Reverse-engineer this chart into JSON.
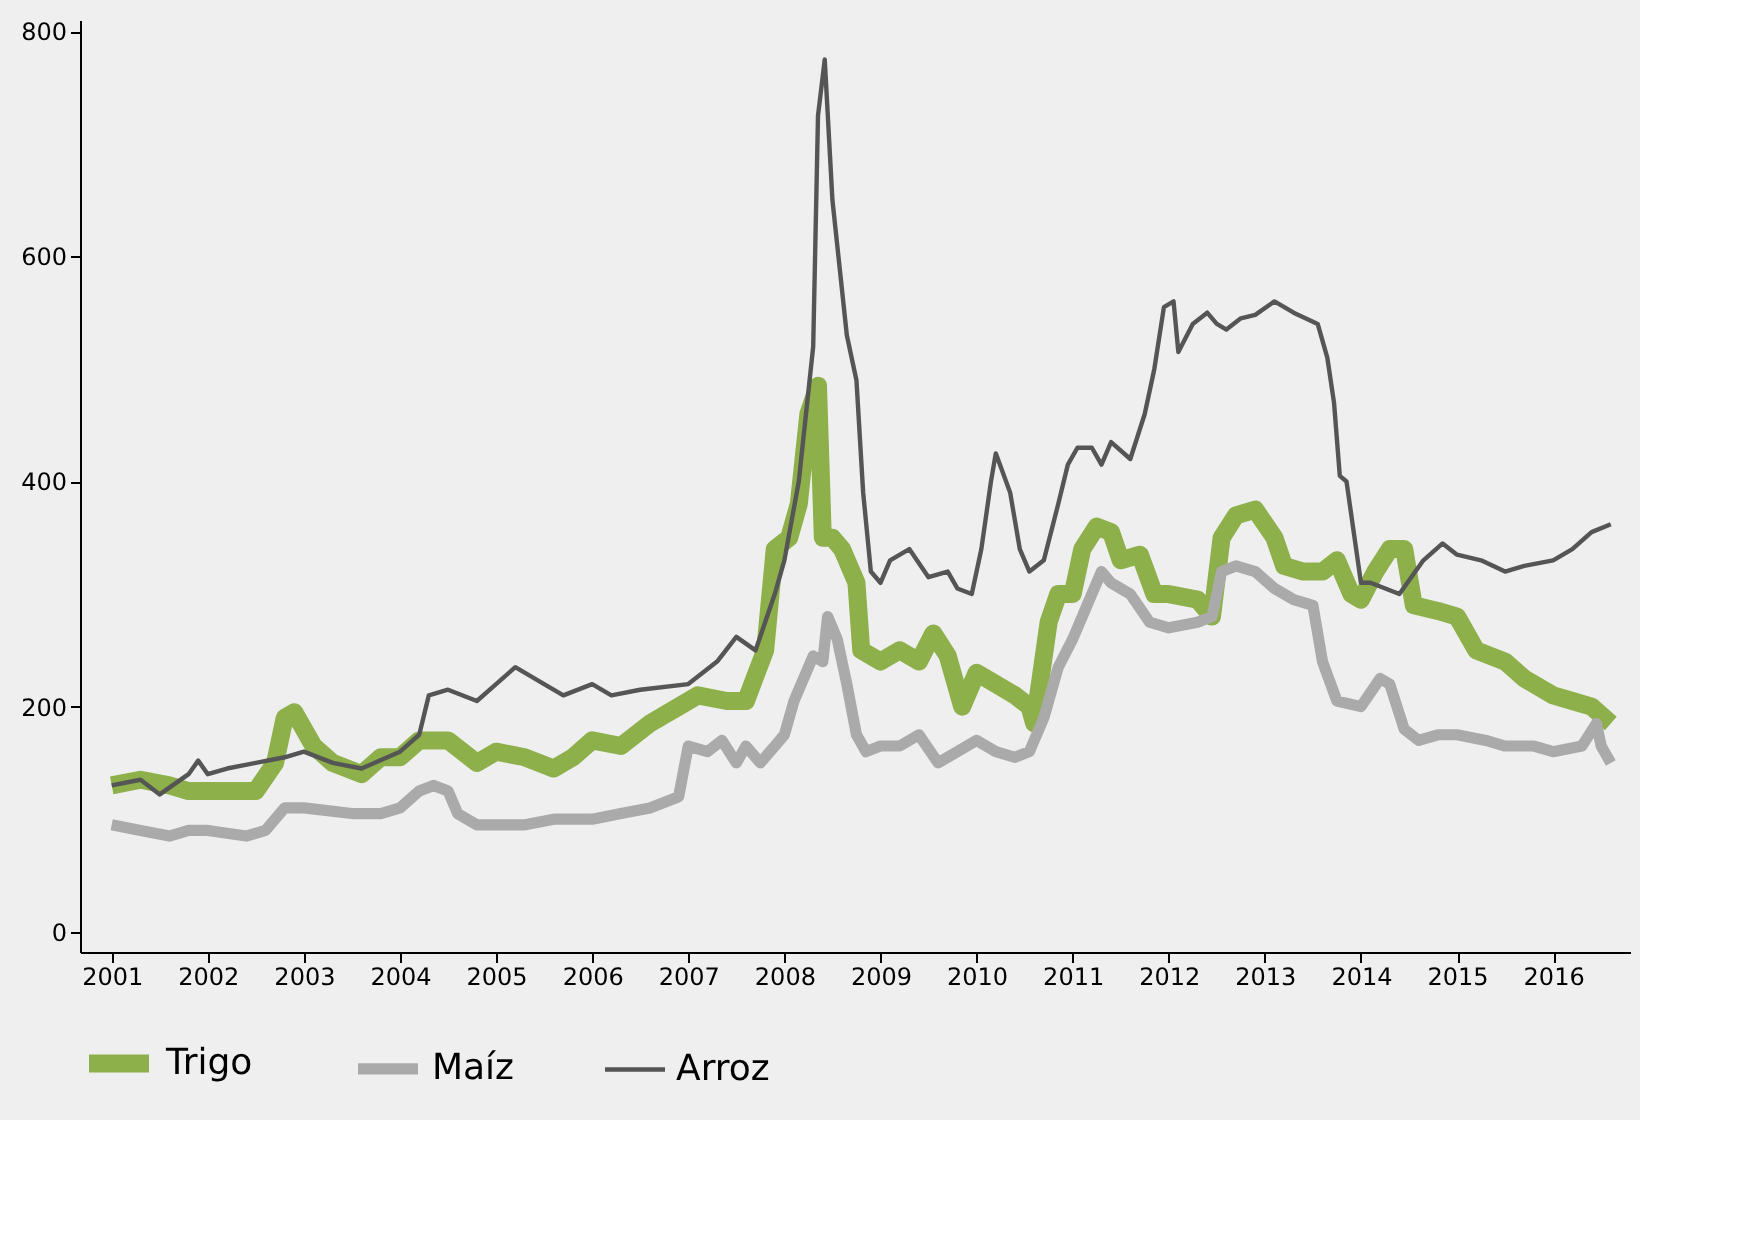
{
  "chart_data": {
    "type": "line",
    "xlim": [
      2000.67,
      2016.8
    ],
    "xticks": [
      2001,
      2002,
      2003,
      2004,
      2005,
      2006,
      2007,
      2008,
      2009,
      2010,
      2011,
      2012,
      2013,
      2014,
      2015,
      2016
    ],
    "ylim": [
      -18,
      810
    ],
    "yticks": [
      0,
      200,
      400,
      600,
      800
    ],
    "grid": false,
    "legend": "bottom",
    "marker": "none",
    "line_style": "solid",
    "series": [
      {
        "name": "Trigo",
        "color": "#8db04a",
        "x": [
          2001,
          2001.3,
          2001.6,
          2001.8,
          2002,
          2002.5,
          2002.7,
          2002.8,
          2002.9,
          2003.1,
          2003.3,
          2003.6,
          2003.8,
          2004,
          2004.2,
          2004.5,
          2004.8,
          2005,
          2005.3,
          2005.6,
          2005.8,
          2006,
          2006.3,
          2006.6,
          2006.9,
          2007.1,
          2007.4,
          2007.6,
          2007.8,
          2007.9,
          2008.05,
          2008.15,
          2008.25,
          2008.35,
          2008.4,
          2008.5,
          2008.6,
          2008.75,
          2008.8,
          2009,
          2009.2,
          2009.4,
          2009.55,
          2009.7,
          2009.85,
          2010,
          2010.2,
          2010.4,
          2010.55,
          2010.6,
          2010.75,
          2010.85,
          2011,
          2011.1,
          2011.25,
          2011.4,
          2011.5,
          2011.7,
          2011.85,
          2012,
          2012.3,
          2012.45,
          2012.55,
          2012.7,
          2012.9,
          2013.1,
          2013.2,
          2013.4,
          2013.6,
          2013.75,
          2013.9,
          2014,
          2014.15,
          2014.3,
          2014.45,
          2014.55,
          2014.8,
          2015,
          2015.2,
          2015.5,
          2015.7,
          2016,
          2016.2,
          2016.4,
          2016.6
        ],
        "values": [
          130,
          135,
          130,
          125,
          125,
          125,
          150,
          190,
          195,
          165,
          150,
          140,
          155,
          155,
          170,
          170,
          150,
          160,
          155,
          145,
          155,
          170,
          165,
          185,
          200,
          210,
          205,
          205,
          250,
          340,
          350,
          380,
          460,
          485,
          350,
          350,
          340,
          310,
          250,
          240,
          250,
          240,
          265,
          245,
          200,
          230,
          220,
          210,
          200,
          185,
          275,
          300,
          300,
          340,
          360,
          355,
          330,
          335,
          300,
          300,
          295,
          280,
          350,
          370,
          375,
          350,
          325,
          320,
          320,
          330,
          300,
          295,
          320,
          340,
          340,
          290,
          285,
          280,
          250,
          240,
          225,
          210,
          205,
          200,
          185
        ]
      },
      {
        "name": "Maíz",
        "color": "#aaaaaa",
        "x": [
          2001,
          2001.3,
          2001.6,
          2001.8,
          2002,
          2002.4,
          2002.6,
          2002.8,
          2003,
          2003.5,
          2003.8,
          2004,
          2004.2,
          2004.35,
          2004.5,
          2004.6,
          2004.8,
          2005,
          2005.3,
          2005.6,
          2005.8,
          2006,
          2006.3,
          2006.6,
          2006.9,
          2007,
          2007.2,
          2007.35,
          2007.5,
          2007.6,
          2007.75,
          2007.9,
          2008,
          2008.1,
          2008.3,
          2008.4,
          2008.45,
          2008.55,
          2008.65,
          2008.75,
          2008.85,
          2009,
          2009.2,
          2009.4,
          2009.6,
          2009.8,
          2010,
          2010.2,
          2010.4,
          2010.55,
          2010.7,
          2010.85,
          2011,
          2011.2,
          2011.3,
          2011.4,
          2011.6,
          2011.8,
          2012,
          2012.3,
          2012.45,
          2012.55,
          2012.7,
          2012.9,
          2013.1,
          2013.3,
          2013.5,
          2013.6,
          2013.75,
          2014,
          2014.2,
          2014.3,
          2014.45,
          2014.6,
          2014.8,
          2015,
          2015.3,
          2015.5,
          2015.8,
          2016,
          2016.3,
          2016.45,
          2016.5,
          2016.6
        ],
        "values": [
          95,
          90,
          85,
          90,
          90,
          85,
          90,
          110,
          110,
          105,
          105,
          110,
          125,
          130,
          125,
          105,
          95,
          95,
          95,
          100,
          100,
          100,
          105,
          110,
          120,
          165,
          160,
          170,
          150,
          165,
          150,
          165,
          175,
          205,
          245,
          240,
          280,
          260,
          220,
          175,
          160,
          165,
          165,
          175,
          150,
          160,
          170,
          160,
          155,
          160,
          190,
          235,
          260,
          300,
          320,
          310,
          300,
          275,
          270,
          275,
          280,
          320,
          325,
          320,
          305,
          295,
          290,
          240,
          205,
          200,
          225,
          220,
          180,
          170,
          175,
          175,
          170,
          165,
          165,
          160,
          165,
          185,
          165,
          150
        ]
      },
      {
        "name": "Arroz",
        "color": "#555555",
        "x": [
          2001,
          2001.3,
          2001.5,
          2001.8,
          2001.9,
          2002,
          2002.2,
          2002.5,
          2002.8,
          2003,
          2003.3,
          2003.6,
          2004,
          2004.2,
          2004.3,
          2004.5,
          2004.8,
          2005,
          2005.2,
          2005.5,
          2005.7,
          2006,
          2006.2,
          2006.5,
          2007,
          2007.3,
          2007.5,
          2007.7,
          2007.9,
          2008,
          2008.15,
          2008.3,
          2008.35,
          2008.42,
          2008.5,
          2008.65,
          2008.75,
          2008.82,
          2008.9,
          2009,
          2009.1,
          2009.3,
          2009.5,
          2009.7,
          2009.8,
          2009.95,
          2010.05,
          2010.15,
          2010.2,
          2010.35,
          2010.45,
          2010.55,
          2010.7,
          2010.85,
          2010.95,
          2011.05,
          2011.2,
          2011.3,
          2011.4,
          2011.6,
          2011.75,
          2011.85,
          2011.95,
          2012.05,
          2012.1,
          2012.25,
          2012.4,
          2012.5,
          2012.6,
          2012.75,
          2012.9,
          2013.1,
          2013.3,
          2013.55,
          2013.65,
          2013.72,
          2013.78,
          2013.85,
          2013.95,
          2014,
          2014.1,
          2014.4,
          2014.65,
          2014.85,
          2015,
          2015.25,
          2015.5,
          2015.7,
          2016,
          2016.2,
          2016.4,
          2016.6
        ],
        "values": [
          130,
          135,
          122,
          140,
          152,
          140,
          145,
          150,
          155,
          160,
          150,
          145,
          160,
          175,
          210,
          215,
          205,
          220,
          235,
          220,
          210,
          220,
          210,
          215,
          220,
          240,
          262,
          250,
          300,
          330,
          400,
          520,
          725,
          775,
          650,
          530,
          490,
          390,
          320,
          310,
          330,
          340,
          315,
          320,
          305,
          300,
          340,
          400,
          425,
          390,
          340,
          320,
          330,
          380,
          415,
          430,
          430,
          415,
          435,
          420,
          460,
          500,
          555,
          560,
          515,
          540,
          550,
          540,
          535,
          545,
          548,
          560,
          550,
          540,
          510,
          470,
          405,
          400,
          340,
          310,
          310,
          300,
          330,
          345,
          335,
          330,
          320,
          325,
          330,
          340,
          355,
          362
        ]
      }
    ]
  }
}
